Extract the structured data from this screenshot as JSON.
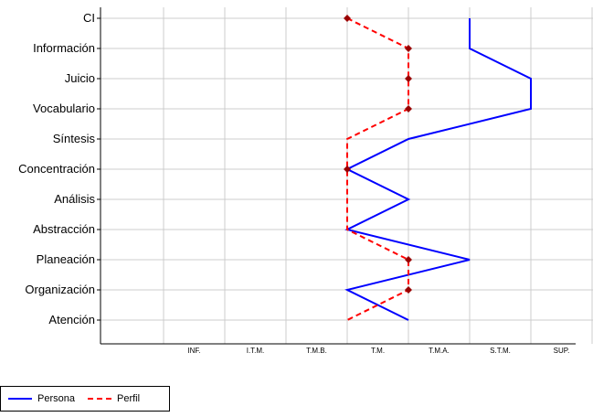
{
  "chart_data": {
    "type": "line",
    "orientation": "horizontal-profile",
    "categories": [
      "CI",
      "Información",
      "Juicio",
      "Vocabulario",
      "Síntesis",
      "Concentración",
      "Análisis",
      "Abstracción",
      "Planeación",
      "Organización",
      "Atención"
    ],
    "levels": [
      "INF.",
      "I.T.M.",
      "T.M.B.",
      "T.M.",
      "T.M.A.",
      "S.T.M.",
      "SUP."
    ],
    "series": [
      {
        "name": "Persona",
        "color": "#0000ff",
        "style": "solid",
        "markers": false,
        "values": [
          6,
          6,
          7,
          7,
          5,
          4,
          5,
          4,
          6,
          4,
          5
        ]
      },
      {
        "name": "Perfil",
        "color": "#ff0000",
        "marker_color": "#990000",
        "style": "dashed",
        "markers": true,
        "values": [
          4,
          5,
          5,
          5,
          4,
          4,
          4,
          4,
          5,
          5,
          4
        ],
        "marker_indices": [
          0,
          1,
          2,
          3,
          5,
          8,
          9
        ]
      }
    ],
    "grid": true,
    "legend_position": "bottom-left"
  }
}
